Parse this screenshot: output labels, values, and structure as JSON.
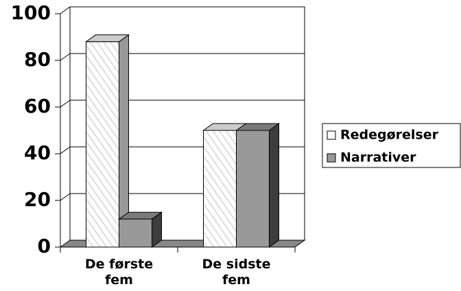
{
  "chart_data": {
    "type": "bar3d",
    "categories": [
      "De første fem",
      "De sidste fem"
    ],
    "series": [
      {
        "name": "Redegørelser",
        "color": "#ffffff",
        "values": [
          88,
          50
        ]
      },
      {
        "name": "Narrativer",
        "color": "#999999",
        "values": [
          12,
          50
        ]
      }
    ],
    "ylim": [
      0,
      100
    ],
    "yticks": [
      0,
      20,
      40,
      60,
      80,
      100
    ],
    "grid": true,
    "legend": "right"
  }
}
